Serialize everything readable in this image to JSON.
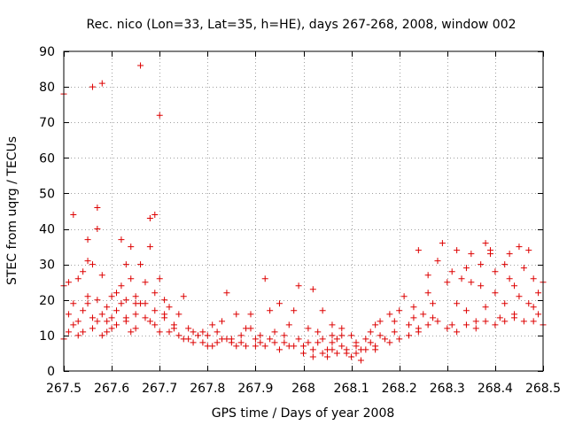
{
  "chart_data": {
    "type": "scatter",
    "title": "Rec. nico (Lon=33, Lat=35, h=HE), days 267-268, 2008, window 002",
    "xlabel": "GPS time / Days of year 2008",
    "ylabel": "STEC from uqrg / TECUs",
    "xlim": [
      267.5,
      268.5
    ],
    "ylim": [
      0,
      90
    ],
    "grid": true,
    "marker": "+",
    "marker_color": "#dd0000",
    "x_ticks": [
      {
        "value": 267.5,
        "label": "267.5"
      },
      {
        "value": 267.6,
        "label": "267.6"
      },
      {
        "value": 267.7,
        "label": "267.7"
      },
      {
        "value": 267.8,
        "label": "267.8"
      },
      {
        "value": 267.9,
        "label": "267.9"
      },
      {
        "value": 268.0,
        "label": "268"
      },
      {
        "value": 268.1,
        "label": "268.1"
      },
      {
        "value": 268.2,
        "label": "268.2"
      },
      {
        "value": 268.3,
        "label": "268.3"
      },
      {
        "value": 268.4,
        "label": "268.4"
      },
      {
        "value": 268.5,
        "label": "268.5"
      }
    ],
    "y_ticks": [
      {
        "value": 0,
        "label": "0"
      },
      {
        "value": 10,
        "label": "10"
      },
      {
        "value": 20,
        "label": "20"
      },
      {
        "value": 30,
        "label": "30"
      },
      {
        "value": 40,
        "label": "40"
      },
      {
        "value": 50,
        "label": "50"
      },
      {
        "value": 60,
        "label": "60"
      },
      {
        "value": 70,
        "label": "70"
      },
      {
        "value": 80,
        "label": "80"
      },
      {
        "value": 90,
        "label": "90"
      }
    ],
    "points": [
      [
        267.5,
        78
      ],
      [
        267.51,
        25
      ],
      [
        267.52,
        44
      ],
      [
        267.51,
        16
      ],
      [
        267.52,
        13
      ],
      [
        267.53,
        26
      ],
      [
        267.5,
        9
      ],
      [
        267.52,
        19
      ],
      [
        267.53,
        10
      ],
      [
        267.54,
        28
      ],
      [
        267.54,
        17
      ],
      [
        267.55,
        37
      ],
      [
        267.55,
        31
      ],
      [
        267.55,
        21
      ],
      [
        267.56,
        30
      ],
      [
        267.56,
        12
      ],
      [
        267.57,
        20
      ],
      [
        267.57,
        14
      ],
      [
        267.58,
        10
      ],
      [
        267.57,
        46
      ],
      [
        267.57,
        40
      ],
      [
        267.58,
        27
      ],
      [
        267.59,
        18
      ],
      [
        267.59,
        11
      ],
      [
        267.6,
        21
      ],
      [
        267.6,
        15
      ],
      [
        267.61,
        22
      ],
      [
        267.61,
        13
      ],
      [
        267.56,
        80
      ],
      [
        267.58,
        81
      ],
      [
        267.62,
        37
      ],
      [
        267.62,
        24
      ],
      [
        267.63,
        30
      ],
      [
        267.63,
        20
      ],
      [
        267.63,
        14
      ],
      [
        267.64,
        35
      ],
      [
        267.64,
        26
      ],
      [
        267.65,
        21
      ],
      [
        267.65,
        16
      ],
      [
        267.65,
        12
      ],
      [
        267.66,
        86
      ],
      [
        267.66,
        30
      ],
      [
        267.67,
        25
      ],
      [
        267.67,
        19
      ],
      [
        267.68,
        35
      ],
      [
        267.68,
        43
      ],
      [
        267.69,
        44
      ],
      [
        267.69,
        22
      ],
      [
        267.69,
        17
      ],
      [
        267.7,
        26
      ],
      [
        267.7,
        72
      ],
      [
        267.71,
        20
      ],
      [
        267.71,
        15
      ],
      [
        267.72,
        18
      ],
      [
        267.73,
        13
      ],
      [
        267.74,
        16
      ],
      [
        267.75,
        21
      ],
      [
        267.76,
        12
      ],
      [
        267.76,
        9
      ],
      [
        267.78,
        10
      ],
      [
        267.79,
        8
      ],
      [
        267.8,
        7
      ],
      [
        267.81,
        13
      ],
      [
        267.82,
        11
      ],
      [
        267.83,
        14
      ],
      [
        267.84,
        22
      ],
      [
        267.85,
        9
      ],
      [
        267.86,
        16
      ],
      [
        267.87,
        8
      ],
      [
        267.88,
        12
      ],
      [
        267.89,
        16
      ],
      [
        267.9,
        7
      ],
      [
        267.91,
        10
      ],
      [
        267.92,
        26
      ],
      [
        267.93,
        17
      ],
      [
        267.94,
        11
      ],
      [
        267.95,
        19
      ],
      [
        267.96,
        8
      ],
      [
        267.97,
        13
      ],
      [
        267.98,
        17
      ],
      [
        267.99,
        24
      ],
      [
        267.99,
        9
      ],
      [
        268.0,
        7
      ],
      [
        268.01,
        12
      ],
      [
        268.02,
        23
      ],
      [
        268.03,
        8
      ],
      [
        268.04,
        17
      ],
      [
        268.05,
        6
      ],
      [
        268.06,
        13
      ],
      [
        268.08,
        10
      ],
      [
        268.0,
        5
      ],
      [
        268.02,
        4
      ],
      [
        268.04,
        9
      ],
      [
        268.05,
        4
      ],
      [
        268.06,
        8
      ],
      [
        268.07,
        5
      ],
      [
        268.08,
        12
      ],
      [
        268.09,
        6
      ],
      [
        268.1,
        4
      ],
      [
        268.11,
        8
      ],
      [
        268.12,
        3
      ],
      [
        268.13,
        6
      ],
      [
        268.14,
        11
      ],
      [
        268.15,
        7
      ],
      [
        268.16,
        14
      ],
      [
        268.17,
        9
      ],
      [
        268.18,
        16
      ],
      [
        268.19,
        11
      ],
      [
        268.2,
        17
      ],
      [
        268.21,
        21
      ],
      [
        268.22,
        13
      ],
      [
        268.23,
        18
      ],
      [
        268.24,
        34
      ],
      [
        268.24,
        11
      ],
      [
        268.25,
        16
      ],
      [
        268.26,
        27
      ],
      [
        268.26,
        22
      ],
      [
        268.27,
        15
      ],
      [
        268.28,
        31
      ],
      [
        268.29,
        36
      ],
      [
        268.3,
        25
      ],
      [
        268.31,
        13
      ],
      [
        268.32,
        34
      ],
      [
        268.32,
        19
      ],
      [
        268.33,
        26
      ],
      [
        268.34,
        29
      ],
      [
        268.34,
        17
      ],
      [
        268.35,
        33
      ],
      [
        268.36,
        14
      ],
      [
        268.37,
        24
      ],
      [
        268.37,
        30
      ],
      [
        268.38,
        36
      ],
      [
        268.38,
        18
      ],
      [
        268.39,
        34
      ],
      [
        268.4,
        22
      ],
      [
        268.4,
        28
      ],
      [
        268.41,
        15
      ],
      [
        268.42,
        30
      ],
      [
        268.42,
        19
      ],
      [
        268.43,
        33
      ],
      [
        268.44,
        24
      ],
      [
        268.44,
        16
      ],
      [
        268.45,
        35
      ],
      [
        268.45,
        21
      ],
      [
        268.46,
        29
      ],
      [
        268.47,
        19
      ],
      [
        268.48,
        26
      ],
      [
        268.48,
        14
      ],
      [
        268.49,
        22
      ],
      [
        268.49,
        16
      ],
      [
        267.5,
        24
      ],
      [
        267.53,
        14
      ],
      [
        267.55,
        19
      ],
      [
        267.58,
        16
      ],
      [
        267.6,
        12
      ],
      [
        267.62,
        19
      ],
      [
        267.64,
        11
      ],
      [
        267.66,
        19
      ],
      [
        267.68,
        14
      ],
      [
        267.7,
        11
      ],
      [
        267.72,
        11
      ],
      [
        267.74,
        10
      ],
      [
        267.77,
        8
      ],
      [
        267.79,
        11
      ],
      [
        267.81,
        7
      ],
      [
        267.83,
        9
      ],
      [
        267.85,
        8
      ],
      [
        267.87,
        10
      ],
      [
        267.89,
        12
      ],
      [
        267.91,
        8
      ],
      [
        267.93,
        9
      ],
      [
        267.95,
        6
      ],
      [
        267.97,
        7
      ],
      [
        268.01,
        8
      ],
      [
        268.03,
        11
      ],
      [
        268.06,
        6
      ],
      [
        268.08,
        7
      ],
      [
        268.1,
        10
      ],
      [
        268.12,
        6
      ],
      [
        268.14,
        8
      ],
      [
        268.16,
        10
      ],
      [
        268.18,
        8
      ],
      [
        268.2,
        9
      ],
      [
        268.22,
        10
      ],
      [
        268.24,
        12
      ],
      [
        268.26,
        13
      ],
      [
        268.28,
        14
      ],
      [
        268.3,
        12
      ],
      [
        268.32,
        11
      ],
      [
        268.34,
        13
      ],
      [
        268.36,
        12
      ],
      [
        268.38,
        14
      ],
      [
        268.4,
        13
      ],
      [
        268.42,
        14
      ],
      [
        268.44,
        15
      ],
      [
        268.46,
        14
      ],
      [
        268.48,
        18
      ],
      [
        268.5,
        25
      ],
      [
        268.5,
        13
      ],
      [
        268.47,
        34
      ],
      [
        268.43,
        26
      ],
      [
        268.39,
        33
      ],
      [
        268.35,
        25
      ],
      [
        268.31,
        28
      ],
      [
        268.27,
        19
      ],
      [
        268.23,
        15
      ],
      [
        268.19,
        14
      ],
      [
        268.15,
        13
      ],
      [
        268.11,
        7
      ],
      [
        268.07,
        9
      ],
      [
        267.51,
        11
      ],
      [
        267.54,
        11
      ],
      [
        267.56,
        15
      ],
      [
        267.59,
        14
      ],
      [
        267.61,
        17
      ],
      [
        267.63,
        15
      ],
      [
        267.65,
        19
      ],
      [
        267.67,
        15
      ],
      [
        267.69,
        13
      ],
      [
        267.71,
        16
      ],
      [
        267.73,
        12
      ],
      [
        267.75,
        9
      ],
      [
        267.77,
        11
      ],
      [
        267.8,
        10
      ],
      [
        267.82,
        8
      ],
      [
        267.84,
        9
      ],
      [
        267.86,
        7
      ],
      [
        267.88,
        7
      ],
      [
        267.9,
        9
      ],
      [
        267.92,
        7
      ],
      [
        267.94,
        8
      ],
      [
        267.96,
        10
      ],
      [
        267.98,
        7
      ],
      [
        268.02,
        6
      ],
      [
        268.04,
        5
      ],
      [
        268.06,
        10
      ],
      [
        268.09,
        5
      ],
      [
        268.11,
        5
      ],
      [
        268.13,
        9
      ],
      [
        268.15,
        6
      ]
    ]
  }
}
